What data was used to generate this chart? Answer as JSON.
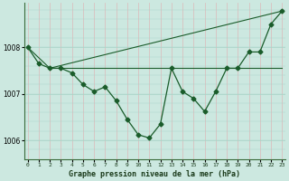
{
  "title": "Graphe pression niveau de la mer (hPa)",
  "bg_color": "#cce8e0",
  "grid_color_h": "#aad4c8",
  "grid_color_v": "#ddb8b8",
  "line_color": "#1a5c2a",
  "x_labels": [
    "0",
    "1",
    "2",
    "3",
    "4",
    "5",
    "6",
    "7",
    "8",
    "9",
    "10",
    "11",
    "12",
    "13",
    "14",
    "15",
    "16",
    "17",
    "18",
    "19",
    "20",
    "21",
    "22",
    "23"
  ],
  "x_values": [
    0,
    1,
    2,
    3,
    4,
    5,
    6,
    7,
    8,
    9,
    10,
    11,
    12,
    13,
    14,
    15,
    16,
    17,
    18,
    19,
    20,
    21,
    22,
    23
  ],
  "series1": [
    1008.0,
    1007.65,
    1007.55,
    1007.55,
    1007.45,
    1007.2,
    1007.05,
    1007.15,
    1006.85,
    1006.45,
    1006.12,
    1006.05,
    1006.35,
    1007.55,
    1007.05,
    1006.9,
    1006.62,
    1007.05,
    1007.55,
    1007.55,
    1007.9,
    1007.9,
    1008.5,
    1008.78
  ],
  "series2_pts": [
    [
      2,
      1007.55
    ],
    [
      23,
      1007.55
    ]
  ],
  "series3_pts": [
    [
      0,
      1008.0
    ],
    [
      2,
      1007.55
    ],
    [
      23,
      1008.78
    ]
  ],
  "ylim": [
    1005.6,
    1008.95
  ],
  "yticks": [
    1006,
    1007,
    1008
  ],
  "marker_size": 2.5,
  "figsize": [
    3.2,
    2.0
  ],
  "dpi": 100
}
